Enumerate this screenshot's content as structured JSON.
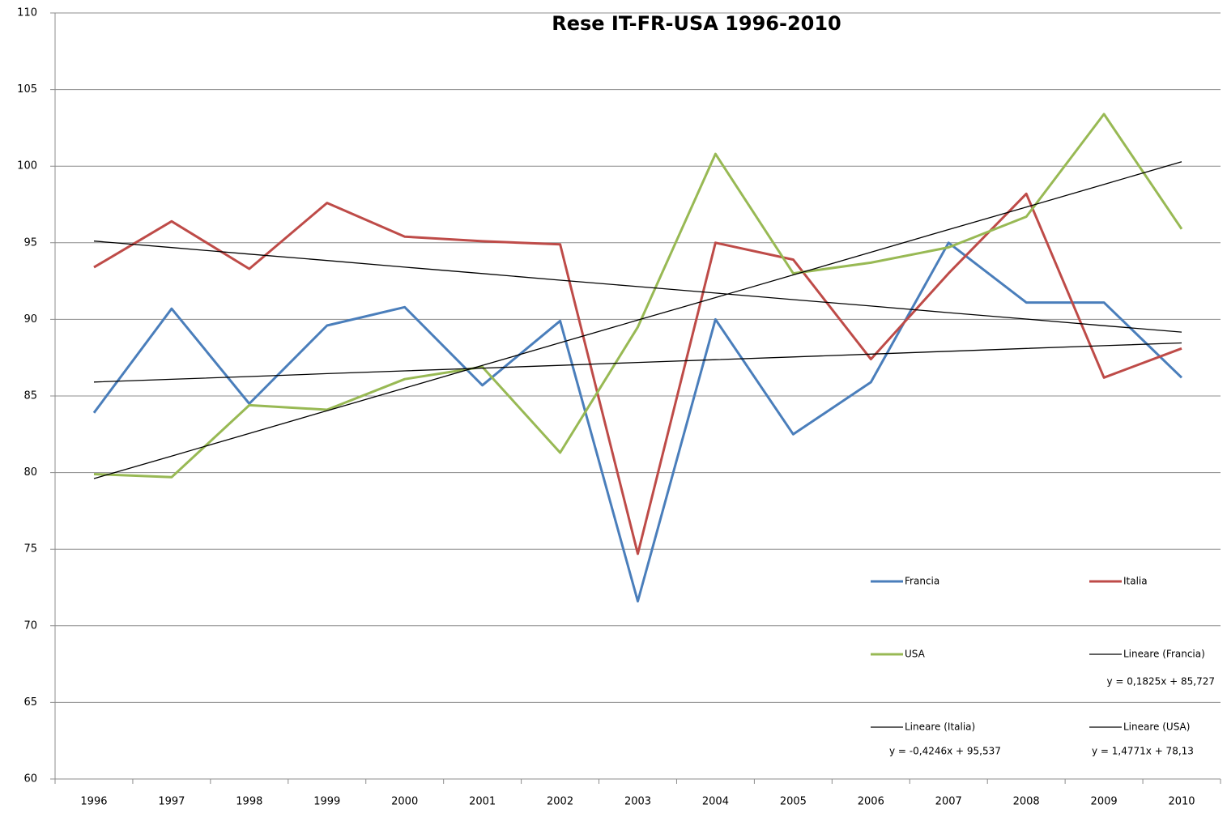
{
  "chart_data": {
    "type": "line",
    "title": "Rese IT-FR-USA 1996-2010",
    "categories": [
      "1996",
      "1997",
      "1998",
      "1999",
      "2000",
      "2001",
      "2002",
      "2003",
      "2004",
      "2005",
      "2006",
      "2007",
      "2008",
      "2009",
      "2010"
    ],
    "ylim": [
      60,
      110
    ],
    "yticks": [
      60,
      65,
      70,
      75,
      80,
      85,
      90,
      95,
      100,
      105,
      110
    ],
    "grid": true,
    "series": [
      {
        "name": "Francia",
        "color": "#4a7ebb",
        "values": [
          83.9,
          90.7,
          84.5,
          89.6,
          90.8,
          85.7,
          89.9,
          71.6,
          90.0,
          82.5,
          85.9,
          95.0,
          91.1,
          91.1,
          86.2
        ]
      },
      {
        "name": "Italia",
        "color": "#be4b48",
        "values": [
          93.4,
          96.4,
          93.3,
          97.6,
          95.4,
          95.1,
          94.9,
          74.7,
          95.0,
          93.9,
          87.4,
          93.0,
          98.2,
          86.2,
          88.1
        ]
      },
      {
        "name": "USA",
        "color": "#98b954",
        "values": [
          79.9,
          79.7,
          84.4,
          84.1,
          86.1,
          86.9,
          81.3,
          89.5,
          100.8,
          93.0,
          93.7,
          94.7,
          96.7,
          103.4,
          95.9
        ]
      },
      {
        "name": "Lineare (Francia)",
        "color": "#000000",
        "equation": "y = 0,1825x + 85,727",
        "values": [
          85.91,
          86.09,
          86.27,
          86.46,
          86.64,
          86.82,
          87.0,
          87.19,
          87.37,
          87.55,
          87.73,
          87.92,
          88.1,
          88.28,
          88.46
        ]
      },
      {
        "name": "Lineare (Italia)",
        "color": "#000000",
        "equation": "y = -0,4246x + 95,537",
        "values": [
          95.11,
          94.69,
          94.26,
          93.84,
          93.41,
          92.99,
          92.56,
          92.14,
          91.72,
          91.29,
          90.87,
          90.44,
          90.02,
          89.59,
          89.17
        ]
      },
      {
        "name": "Lineare (USA)",
        "color": "#000000",
        "equation": "y = 1,4771x + 78,13",
        "values": [
          79.61,
          81.08,
          82.56,
          84.04,
          85.52,
          86.99,
          88.47,
          89.95,
          91.42,
          92.9,
          94.38,
          95.86,
          97.33,
          98.81,
          100.29
        ]
      }
    ]
  }
}
